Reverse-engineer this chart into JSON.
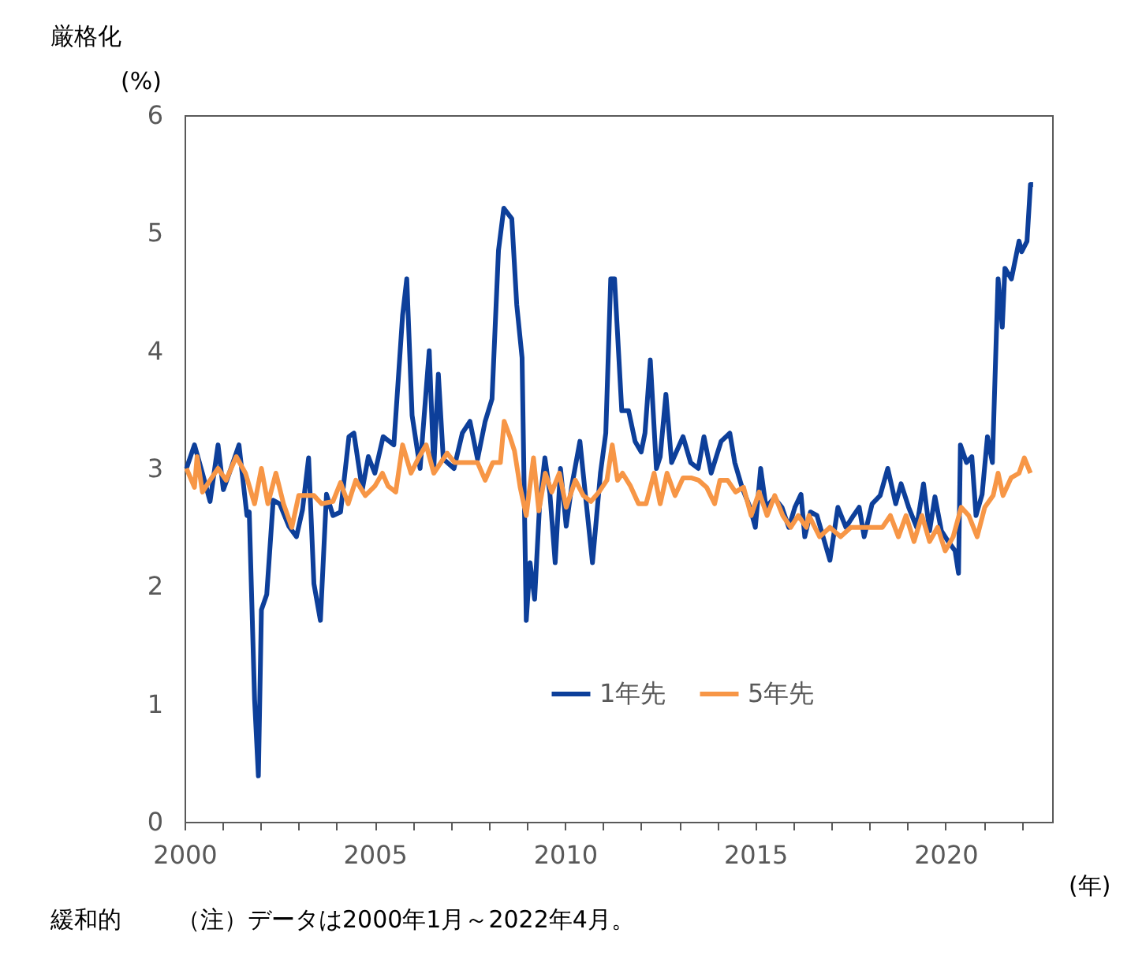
{
  "chart_data": {
    "type": "line",
    "xlabel": "(年)",
    "ylabel": "(%)",
    "xlim": [
      2000,
      2022.8
    ],
    "ylim": [
      0,
      6
    ],
    "xticks": [
      2000,
      {
        "value": 2001,
        "label": null
      },
      {
        "value": 2002,
        "label": null
      },
      {
        "value": 2003,
        "label": null
      },
      {
        "value": 2004,
        "label": null
      },
      2005,
      {
        "value": 2006,
        "label": null
      },
      {
        "value": 2007,
        "label": null
      },
      {
        "value": 2008,
        "label": null
      },
      {
        "value": 2009,
        "label": null
      },
      2010,
      {
        "value": 2011,
        "label": null
      },
      {
        "value": 2012,
        "label": null
      },
      {
        "value": 2013,
        "label": null
      },
      {
        "value": 2014,
        "label": null
      },
      2015,
      {
        "value": 2016,
        "label": null
      },
      {
        "value": 2017,
        "label": null
      },
      {
        "value": 2018,
        "label": null
      },
      {
        "value": 2019,
        "label": null
      },
      2020,
      {
        "value": 2021,
        "label": null
      },
      {
        "value": 2022,
        "label": null
      }
    ],
    "yticks": [
      0,
      1,
      2,
      3,
      4,
      5,
      6
    ],
    "grid": false,
    "legend": "bottom",
    "marker": "none",
    "line_style": "solid",
    "annotations": [
      "厳格化",
      "緩和的",
      "（注）データは2000年1月～2022年4月。"
    ],
    "series": [
      {
        "name": "1年先",
        "color": "#0d3f9a",
        "x": [
          2000.05,
          2000.26,
          2000.47,
          2000.67,
          2000.88,
          2001.02,
          2001.22,
          2001.43,
          2001.64,
          2001.7,
          2001.84,
          2001.94,
          2002.02,
          2002.16,
          2002.33,
          2002.5,
          2002.74,
          2002.94,
          2003.1,
          2003.26,
          2003.4,
          2003.57,
          2003.73,
          2003.9,
          2004.1,
          2004.32,
          2004.45,
          2004.67,
          2004.83,
          2005.0,
          2005.22,
          2005.5,
          2005.73,
          2005.84,
          2005.98,
          2006.19,
          2006.43,
          2006.55,
          2006.67,
          2006.8,
          2007.08,
          2007.3,
          2007.5,
          2007.7,
          2007.9,
          2008.08,
          2008.25,
          2008.39,
          2008.6,
          2008.73,
          2008.87,
          2008.98,
          2009.08,
          2009.2,
          2009.33,
          2009.47,
          2009.6,
          2009.74,
          2009.88,
          2010.03,
          2010.17,
          2010.39,
          2010.53,
          2010.72,
          2010.93,
          2011.07,
          2011.2,
          2011.3,
          2011.49,
          2011.67,
          2011.84,
          2012.0,
          2012.1,
          2012.24,
          2012.4,
          2012.5,
          2012.65,
          2012.8,
          2013.1,
          2013.3,
          2013.5,
          2013.65,
          2013.84,
          2014.1,
          2014.33,
          2014.46,
          2014.65,
          2014.86,
          2015.0,
          2015.14,
          2015.28,
          2015.5,
          2015.7,
          2015.88,
          2016.04,
          2016.2,
          2016.3,
          2016.45,
          2016.62,
          2016.96,
          2017.17,
          2017.38,
          2017.58,
          2017.73,
          2017.86,
          2018.07,
          2018.28,
          2018.48,
          2018.69,
          2018.83,
          2019.03,
          2019.24,
          2019.42,
          2019.58,
          2019.72,
          2019.89,
          2020.07,
          2020.25,
          2020.34,
          2020.39,
          2020.55,
          2020.69,
          2020.8,
          2020.96,
          2021.1,
          2021.23,
          2021.38,
          2021.49,
          2021.56,
          2021.73,
          2021.93,
          2022.0,
          2022.14,
          2022.23,
          2022.3
        ],
        "values": [
          3.0,
          3.2,
          2.96,
          2.72,
          3.2,
          2.82,
          3.0,
          3.2,
          2.6,
          2.63,
          1.04,
          0.39,
          1.8,
          1.93,
          2.73,
          2.7,
          2.51,
          2.42,
          2.65,
          3.09,
          2.02,
          1.71,
          2.78,
          2.6,
          2.63,
          3.27,
          3.3,
          2.82,
          3.1,
          2.96,
          3.27,
          3.2,
          4.3,
          4.61,
          3.45,
          3.0,
          4.0,
          3.0,
          3.8,
          3.08,
          3.0,
          3.3,
          3.4,
          3.08,
          3.4,
          3.59,
          4.85,
          5.21,
          5.12,
          4.39,
          3.94,
          1.71,
          2.2,
          1.89,
          2.69,
          3.09,
          2.79,
          2.2,
          3.0,
          2.51,
          2.84,
          3.23,
          2.79,
          2.2,
          2.96,
          3.3,
          4.61,
          4.61,
          3.49,
          3.49,
          3.23,
          3.14,
          3.3,
          3.92,
          3.0,
          3.1,
          3.63,
          3.05,
          3.27,
          3.05,
          3.0,
          3.27,
          2.96,
          3.23,
          3.3,
          3.05,
          2.84,
          2.67,
          2.5,
          3.0,
          2.67,
          2.75,
          2.67,
          2.5,
          2.67,
          2.78,
          2.42,
          2.63,
          2.6,
          2.22,
          2.67,
          2.5,
          2.6,
          2.67,
          2.42,
          2.7,
          2.77,
          3.0,
          2.7,
          2.87,
          2.67,
          2.5,
          2.87,
          2.47,
          2.76,
          2.47,
          2.38,
          2.3,
          2.11,
          3.2,
          3.05,
          3.1,
          2.6,
          2.78,
          3.27,
          3.05,
          4.61,
          4.2,
          4.7,
          4.61,
          4.93,
          4.84,
          4.93,
          5.41,
          5.41
        ]
      },
      {
        "name": "5年先",
        "color": "#f79646",
        "x": [
          2000.05,
          2000.26,
          2000.33,
          2000.47,
          2000.67,
          2000.88,
          2001.09,
          2001.36,
          2001.6,
          2001.84,
          2002.02,
          2002.19,
          2002.4,
          2002.6,
          2002.82,
          2003.0,
          2003.2,
          2003.4,
          2003.6,
          2003.9,
          2004.1,
          2004.3,
          2004.5,
          2004.75,
          2005.0,
          2005.2,
          2005.35,
          2005.55,
          2005.73,
          2005.95,
          2006.15,
          2006.35,
          2006.55,
          2006.9,
          2007.1,
          2007.4,
          2007.7,
          2007.9,
          2008.1,
          2008.3,
          2008.4,
          2008.55,
          2008.67,
          2008.82,
          2008.98,
          2009.17,
          2009.31,
          2009.48,
          2009.65,
          2009.85,
          2010.03,
          2010.27,
          2010.48,
          2010.68,
          2010.89,
          2011.1,
          2011.24,
          2011.38,
          2011.51,
          2011.72,
          2011.93,
          2012.13,
          2012.34,
          2012.5,
          2012.68,
          2012.89,
          2013.1,
          2013.31,
          2013.51,
          2013.72,
          2013.93,
          2014.07,
          2014.27,
          2014.48,
          2014.69,
          2014.89,
          2015.1,
          2015.31,
          2015.51,
          2015.72,
          2015.93,
          2016.13,
          2016.34,
          2016.41,
          2016.69,
          2016.96,
          2017.24,
          2017.51,
          2017.79,
          2018.07,
          2018.34,
          2018.55,
          2018.76,
          2018.96,
          2019.17,
          2019.38,
          2019.58,
          2019.79,
          2019.99,
          2020.2,
          2020.41,
          2020.61,
          2020.83,
          2021.03,
          2021.25,
          2021.38,
          2021.51,
          2021.72,
          2021.93,
          2022.07,
          2022.23
        ],
        "values": [
          3.0,
          2.84,
          3.1,
          2.8,
          2.9,
          3.0,
          2.9,
          3.1,
          2.96,
          2.7,
          3.0,
          2.7,
          2.96,
          2.7,
          2.5,
          2.77,
          2.77,
          2.77,
          2.7,
          2.72,
          2.88,
          2.7,
          2.9,
          2.77,
          2.85,
          2.96,
          2.85,
          2.8,
          3.2,
          2.96,
          3.09,
          3.2,
          2.96,
          3.13,
          3.05,
          3.05,
          3.05,
          2.9,
          3.05,
          3.05,
          3.4,
          3.27,
          3.15,
          2.84,
          2.6,
          3.09,
          2.64,
          2.96,
          2.8,
          2.96,
          2.67,
          2.9,
          2.77,
          2.72,
          2.8,
          2.9,
          3.2,
          2.9,
          2.96,
          2.85,
          2.7,
          2.7,
          2.96,
          2.7,
          2.96,
          2.77,
          2.92,
          2.92,
          2.9,
          2.84,
          2.7,
          2.9,
          2.9,
          2.8,
          2.84,
          2.6,
          2.8,
          2.6,
          2.77,
          2.6,
          2.5,
          2.6,
          2.5,
          2.6,
          2.42,
          2.5,
          2.42,
          2.5,
          2.5,
          2.5,
          2.5,
          2.6,
          2.42,
          2.6,
          2.38,
          2.6,
          2.38,
          2.5,
          2.3,
          2.42,
          2.67,
          2.6,
          2.42,
          2.67,
          2.77,
          2.96,
          2.77,
          2.92,
          2.96,
          3.09,
          2.96
        ]
      }
    ]
  }
}
